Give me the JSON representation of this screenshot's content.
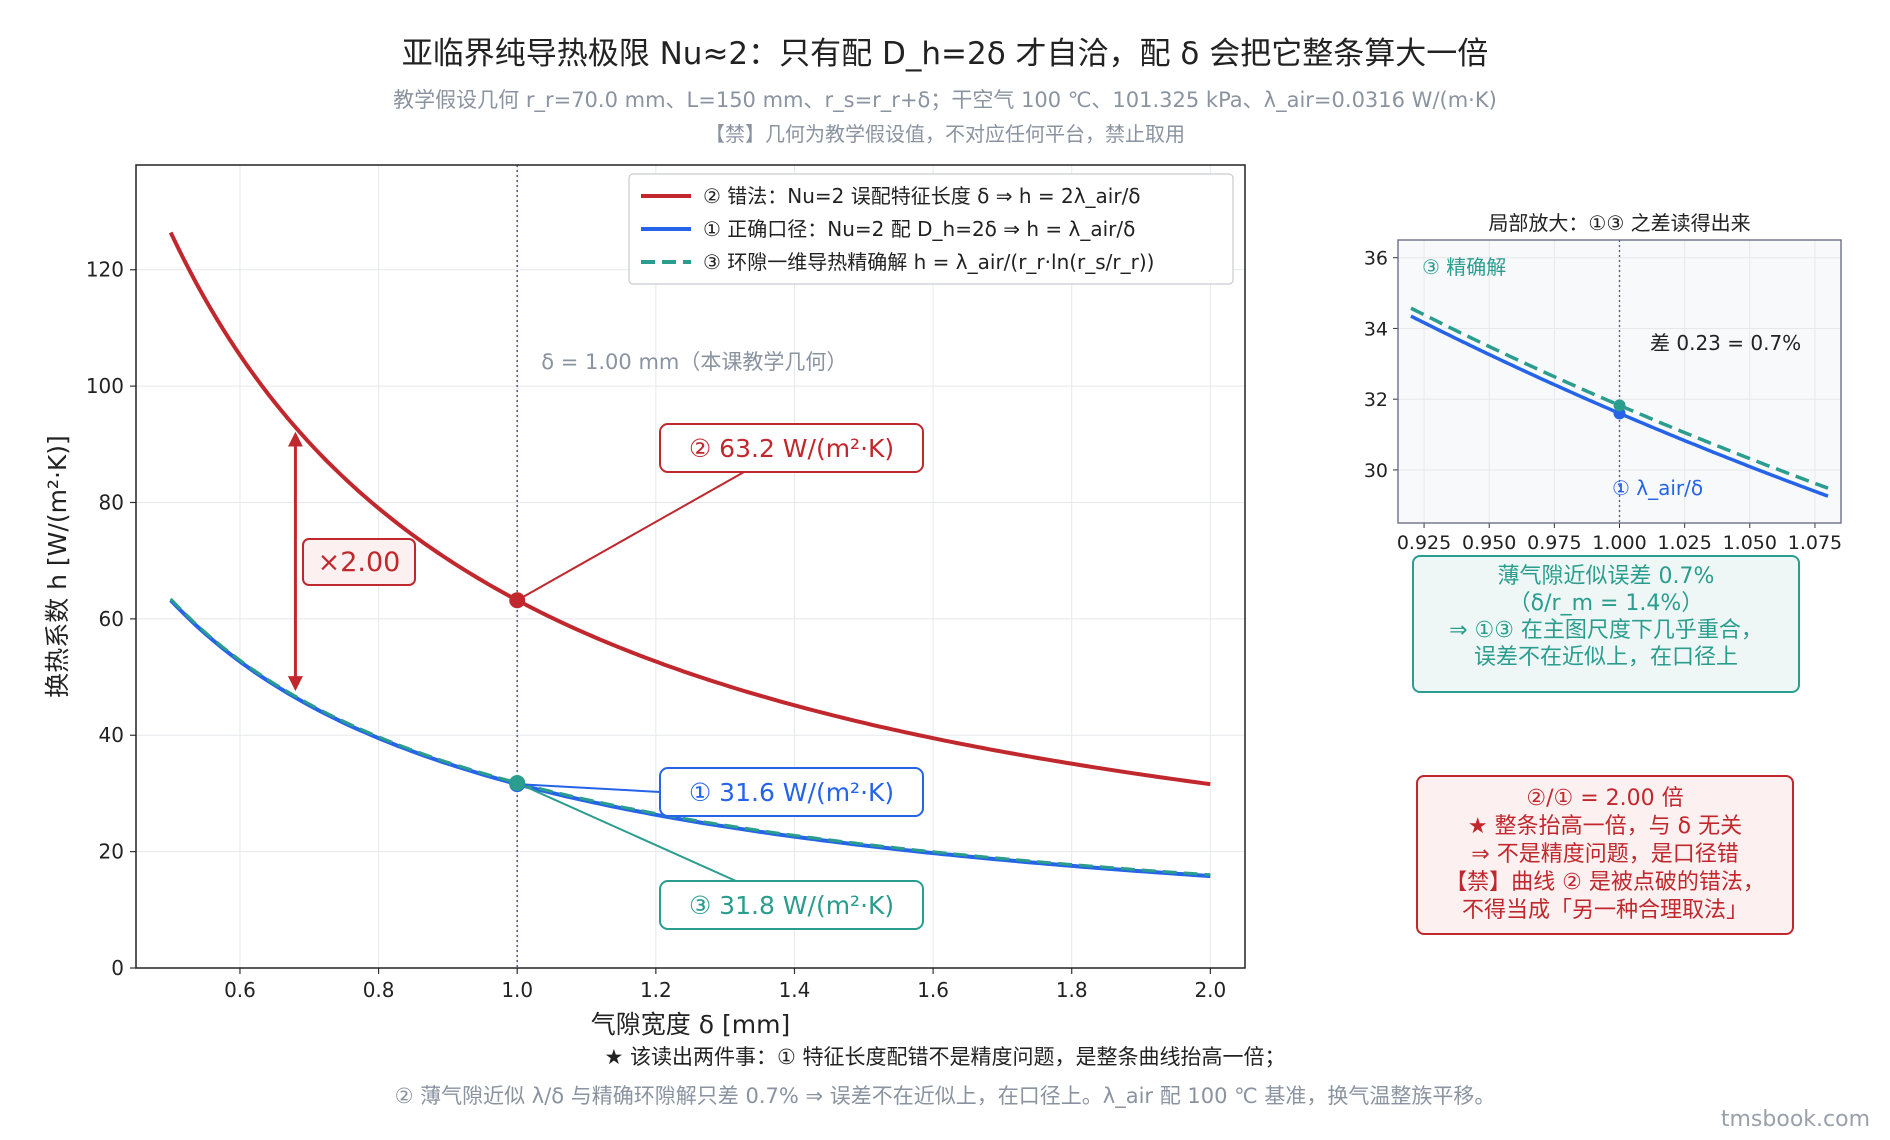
{
  "title": "亚临界纯导热极限 Nu≈2：只有配 D_h=2δ 才自洽，配 δ 会把它整条算大一倍",
  "subtitle1": "教学假设几何 r_r=70.0 mm、L=150 mm、r_s=r_r+δ；干空气 100 ℃、101.325 kPa、λ_air=0.0316 W/(m·K)",
  "subtitle2": "【禁】几何为教学假设值，不对应任何平台，禁止取用",
  "colors": {
    "wrong": "#c0282d",
    "correct": "#2563e8",
    "exact": "#2a9d8f",
    "vline": "#5b5f8a"
  },
  "chart_data": [
    {
      "type": "line",
      "xlabel": "气隙宽度 δ [mm]",
      "ylabel": "换热系数 h [W/(m²·K)]",
      "xlim": [
        0.45,
        2.05
      ],
      "ylim": [
        0,
        138
      ],
      "xticks": [
        0.6,
        0.8,
        1.0,
        1.2,
        1.4,
        1.6,
        1.8,
        2.0
      ],
      "yticks": [
        0,
        20,
        40,
        60,
        80,
        100,
        120
      ],
      "grid": true,
      "legend_position": "top-right",
      "series": [
        {
          "name": "② 错法：Nu=2 误配特征长度 δ ⇒ h = 2λ_air/δ",
          "key": "wrong",
          "style": "solid",
          "x_range": [
            0.5,
            2.0
          ],
          "formula": "63.2/δ"
        },
        {
          "name": "① 正确口径：Nu=2 配 D_h=2δ ⇒ h = λ_air/δ",
          "key": "correct",
          "style": "solid",
          "x_range": [
            0.5,
            2.0
          ],
          "formula": "31.6/δ"
        },
        {
          "name": "③ 环隙一维导热精确解 h = λ_air/(r_r·ln(r_s/r_r))",
          "key": "exact",
          "style": "dashed",
          "x_range": [
            0.5,
            2.0
          ],
          "formula": "0.0316/(0.07·ln(1+δ/70))"
        }
      ],
      "vline": {
        "x": 1.0,
        "label": "δ = 1.00 mm（本课教学几何）"
      },
      "points": [
        {
          "key": "wrong",
          "x": 1.0,
          "y": 63.2,
          "label": "② 63.2 W/(m²·K)"
        },
        {
          "key": "correct",
          "x": 1.0,
          "y": 31.6,
          "label": "① 31.6 W/(m²·K)"
        },
        {
          "key": "exact",
          "x": 1.0,
          "y": 31.8,
          "label": "③ 31.8 W/(m²·K)"
        }
      ],
      "ratio_arrow": {
        "x": 0.68,
        "label": "×2.00"
      }
    },
    {
      "type": "line",
      "title": "局部放大：①③ 之差读得出来",
      "xlim": [
        0.915,
        1.085
      ],
      "ylim": [
        28.5,
        36.5
      ],
      "xticks": [
        0.925,
        0.95,
        0.975,
        1.0,
        1.025,
        1.05,
        1.075
      ],
      "xtick_labels": [
        "0.925",
        "0.950",
        "0.975",
        "1.000",
        "1.025",
        "1.050",
        "1.075"
      ],
      "yticks": [
        30,
        32,
        34,
        36
      ],
      "x_range": [
        0.92,
        1.08
      ],
      "grid": true,
      "label_exact": "③ 精确解",
      "label_correct": "① λ_air/δ",
      "diff_label": "差 0.23 = 0.7%"
    }
  ],
  "info_green": [
    "薄气隙近似误差 0.7%",
    "（δ/r_m = 1.4%）",
    "⇒ ①③ 在主图尺度下几乎重合，",
    "误差不在近似上，在口径上"
  ],
  "info_red": [
    "②/① = 2.00 倍",
    "★ 整条抬高一倍，与 δ 无关",
    "⇒ 不是精度问题，是口径错",
    "【禁】曲线 ② 是被点破的错法，",
    "不得当成「另一种合理取法」"
  ],
  "footer1": "★ 该读出两件事：① 特征长度配错不是精度问题，是整条曲线抬高一倍；",
  "footer2": "② 薄气隙近似 λ/δ 与精确环隙解只差 0.7% ⇒ 误差不在近似上，在口径上。λ_air 配 100 ℃ 基准，换气温整族平移。",
  "brand": "tmsbook.com"
}
